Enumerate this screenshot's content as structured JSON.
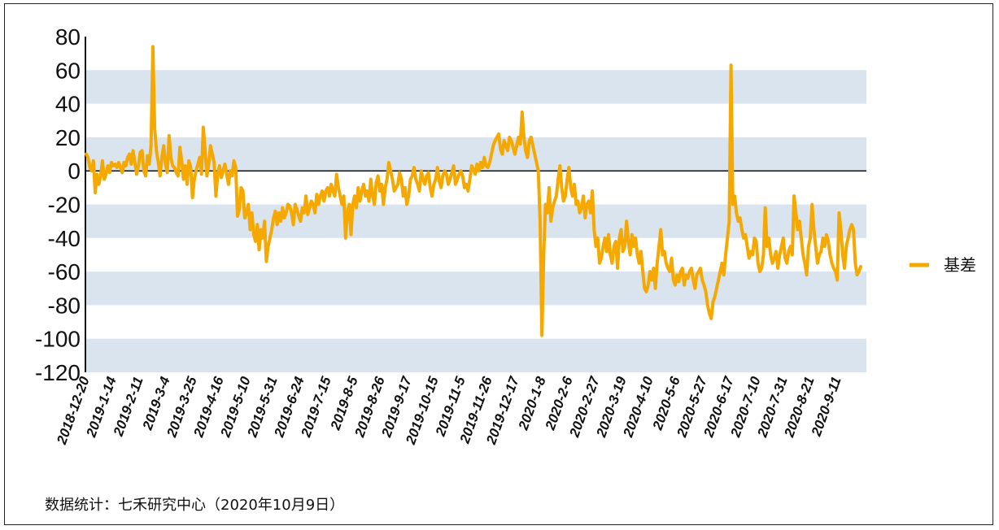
{
  "chart_data": {
    "type": "line",
    "title": "",
    "xlabel": "",
    "ylabel": "",
    "ylim": [
      -120,
      80
    ],
    "yticks": [
      80,
      60,
      40,
      20,
      0,
      -20,
      -40,
      -60,
      -80,
      -100,
      -120
    ],
    "grid": "alternating horizontal bands",
    "legend_position": "right",
    "x_tick_labels": [
      "2018-12-20",
      "2019-1-14",
      "2019-2-11",
      "2019-3-4",
      "2019-3-25",
      "2019-4-16",
      "2019-5-10",
      "2019-5-31",
      "2019-6-24",
      "2019-7-15",
      "2019-8-5",
      "2019-8-26",
      "2019-9-17",
      "2019-10-15",
      "2019-11-5",
      "2019-11-26",
      "2019-12-17",
      "2020-1-8",
      "2020-2-6",
      "2020-2-27",
      "2020-3-19",
      "2020-4-10",
      "2020-5-6",
      "2020-5-27",
      "2020-6-17",
      "2020-7-10",
      "2020-7-31",
      "2020-8-21",
      "2020-9-11"
    ],
    "series": [
      {
        "name": "基差",
        "color": "#F5A800",
        "values": [
          10,
          8,
          2,
          0,
          6,
          -13,
          -2,
          -8,
          -3,
          6,
          -5,
          -2,
          3,
          -1,
          5,
          3,
          4,
          2,
          5,
          2,
          -1,
          5,
          3,
          8,
          10,
          4,
          12,
          5,
          -2,
          3,
          11,
          12,
          0,
          -3,
          9,
          4,
          15,
          74,
          25,
          12,
          5,
          -3,
          8,
          15,
          4,
          -1,
          21,
          8,
          3,
          2,
          -1,
          -3,
          14,
          6,
          -5,
          3,
          -8,
          6,
          2,
          -16,
          -5,
          0,
          4,
          8,
          -2,
          26,
          12,
          -3,
          4,
          15,
          10,
          5,
          -15,
          -2,
          3,
          -4,
          0,
          4,
          -2,
          -8,
          0,
          -3,
          6,
          2,
          -27,
          -23,
          -10,
          -12,
          -28,
          -25,
          -20,
          -35,
          -25,
          -38,
          -42,
          -32,
          -47,
          -35,
          -40,
          -30,
          -54,
          -45,
          -40,
          -35,
          -28,
          -24,
          -32,
          -25,
          -30,
          -22,
          -28,
          -25,
          -20,
          -21,
          -25,
          -32,
          -20,
          -23,
          -27,
          -30,
          -22,
          -25,
          -15,
          -26,
          -22,
          -18,
          -20,
          -25,
          -14,
          -20,
          -15,
          -12,
          -18,
          -12,
          -10,
          -15,
          -8,
          -12,
          -15,
          -2,
          -10,
          -15,
          -20,
          -15,
          -40,
          -25,
          -20,
          -38,
          -20,
          -15,
          -22,
          -10,
          -18,
          -12,
          -8,
          -15,
          -12,
          -18,
          -5,
          -15,
          -20,
          -7,
          -3,
          -12,
          -8,
          -20,
          -10,
          -5,
          5,
          0,
          -5,
          -12,
          -10,
          -8,
          -1,
          -5,
          -15,
          -10,
          -20,
          -15,
          -5,
          -3,
          2,
          -5,
          -8,
          -12,
          0,
          -5,
          -8,
          -3,
          -1,
          -10,
          -15,
          -8,
          -5,
          2,
          -6,
          -10,
          -3,
          0,
          -2,
          -8,
          -5,
          -1,
          3,
          -8,
          -5,
          -2,
          0,
          -3,
          -10,
          -8,
          -12,
          -5,
          3,
          1,
          -2,
          4,
          0,
          5,
          2,
          8,
          3,
          2,
          5,
          10,
          15,
          18,
          20,
          22,
          13,
          10,
          18,
          15,
          12,
          20,
          18,
          14,
          10,
          15,
          20,
          16,
          35,
          20,
          12,
          8,
          18,
          20,
          15,
          10,
          5,
          0,
          -30,
          -98,
          -50,
          -20,
          -25,
          -10,
          -30,
          -22,
          -18,
          -15,
          -5,
          3,
          -10,
          -18,
          -15,
          -5,
          2,
          -10,
          -15,
          -8,
          -20,
          -18,
          -25,
          -22,
          -15,
          -28,
          -20,
          -18,
          -25,
          -12,
          -35,
          -45,
          -40,
          -55,
          -52,
          -45,
          -40,
          -48,
          -38,
          -50,
          -55,
          -45,
          -42,
          -58,
          -40,
          -35,
          -48,
          -45,
          -30,
          -42,
          -50,
          -38,
          -45,
          -40,
          -50,
          -55,
          -48,
          -60,
          -70,
          -72,
          -68,
          -60,
          -65,
          -58,
          -70,
          -55,
          -45,
          -35,
          -50,
          -48,
          -55,
          -58,
          -60,
          -52,
          -65,
          -68,
          -62,
          -66,
          -60,
          -58,
          -68,
          -62,
          -64,
          -60,
          -58,
          -65,
          -70,
          -62,
          -60,
          -58,
          -65,
          -68,
          -72,
          -80,
          -85,
          -88,
          -78,
          -75,
          -70,
          -65,
          -60,
          -55,
          -62,
          -50,
          -40,
          -30,
          63,
          -20,
          -15,
          -25,
          -30,
          -28,
          -35,
          -40,
          -38,
          -45,
          -52,
          -48,
          -50,
          -40,
          -42,
          -55,
          -60,
          -58,
          -50,
          -22,
          -45,
          -40,
          -50,
          -55,
          -52,
          -48,
          -58,
          -50,
          -45,
          -40,
          -52,
          -55,
          -48,
          -45,
          -50,
          -15,
          -25,
          -35,
          -30,
          -40,
          -50,
          -55,
          -62,
          -45,
          -40,
          -20,
          -35,
          -45,
          -55,
          -50,
          -48,
          -40,
          -45,
          -38,
          -42,
          -50,
          -55,
          -58,
          -60,
          -65,
          -25,
          -35,
          -50,
          -58,
          -45,
          -40,
          -35,
          -32,
          -35,
          -55,
          -62,
          -60,
          -57
        ]
      }
    ]
  },
  "legend": {
    "label": "基差",
    "color": "#F5A800"
  },
  "footer": {
    "source": "数据统计：七禾研究中心（2020年10月9日）"
  }
}
